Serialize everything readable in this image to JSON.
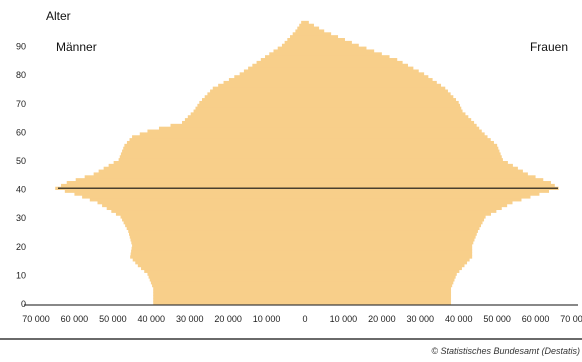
{
  "chart_data": {
    "type": "bar",
    "orientation": "horizontal",
    "subtype": "population-pyramid",
    "y_axis_title": "Alter",
    "y_ticks": [
      0,
      10,
      20,
      30,
      40,
      50,
      60,
      70,
      80,
      90
    ],
    "x_tick_labels": [
      "70 000",
      "60 000",
      "50 000",
      "40 000",
      "30 000",
      "20 000",
      "10 000",
      "0",
      "10 000",
      "20 000",
      "30 000",
      "40 000",
      "50 000",
      "60 000",
      "70 000"
    ],
    "xlim": [
      -70000,
      70000
    ],
    "ylim": [
      0,
      100
    ],
    "reference_age": 40,
    "series": [
      {
        "name": "Männer",
        "color": "#f8cf8a",
        "points": [
          [
            0,
            39500
          ],
          [
            5,
            39500
          ],
          [
            10,
            41000
          ],
          [
            13,
            43500
          ],
          [
            16,
            45500
          ],
          [
            20,
            45000
          ],
          [
            25,
            46000
          ],
          [
            30,
            48000
          ],
          [
            35,
            54000
          ],
          [
            38,
            60000
          ],
          [
            40,
            65000
          ],
          [
            42,
            62000
          ],
          [
            45,
            55000
          ],
          [
            50,
            48500
          ],
          [
            55,
            47000
          ],
          [
            58,
            45000
          ],
          [
            60,
            41000
          ],
          [
            63,
            32000
          ],
          [
            67,
            29000
          ],
          [
            70,
            27500
          ],
          [
            75,
            24000
          ],
          [
            80,
            17000
          ],
          [
            85,
            11500
          ],
          [
            90,
            6000
          ],
          [
            95,
            2500
          ],
          [
            98,
            1000
          ]
        ]
      },
      {
        "name": "Frauen",
        "color": "#f8cf8a",
        "points": [
          [
            0,
            38000
          ],
          [
            5,
            38000
          ],
          [
            10,
            39500
          ],
          [
            13,
            41500
          ],
          [
            16,
            43500
          ],
          [
            20,
            43500
          ],
          [
            25,
            45000
          ],
          [
            30,
            47000
          ],
          [
            35,
            54000
          ],
          [
            38,
            61000
          ],
          [
            40,
            66000
          ],
          [
            42,
            64000
          ],
          [
            45,
            58000
          ],
          [
            50,
            51500
          ],
          [
            55,
            50000
          ],
          [
            58,
            47500
          ],
          [
            60,
            46000
          ],
          [
            63,
            44000
          ],
          [
            67,
            41000
          ],
          [
            70,
            40000
          ],
          [
            75,
            36500
          ],
          [
            80,
            31000
          ],
          [
            85,
            24000
          ],
          [
            90,
            14000
          ],
          [
            95,
            5000
          ],
          [
            98,
            1000
          ]
        ]
      }
    ],
    "grid": false,
    "source": "© Statistisches Bundesamt (Destatis)"
  }
}
